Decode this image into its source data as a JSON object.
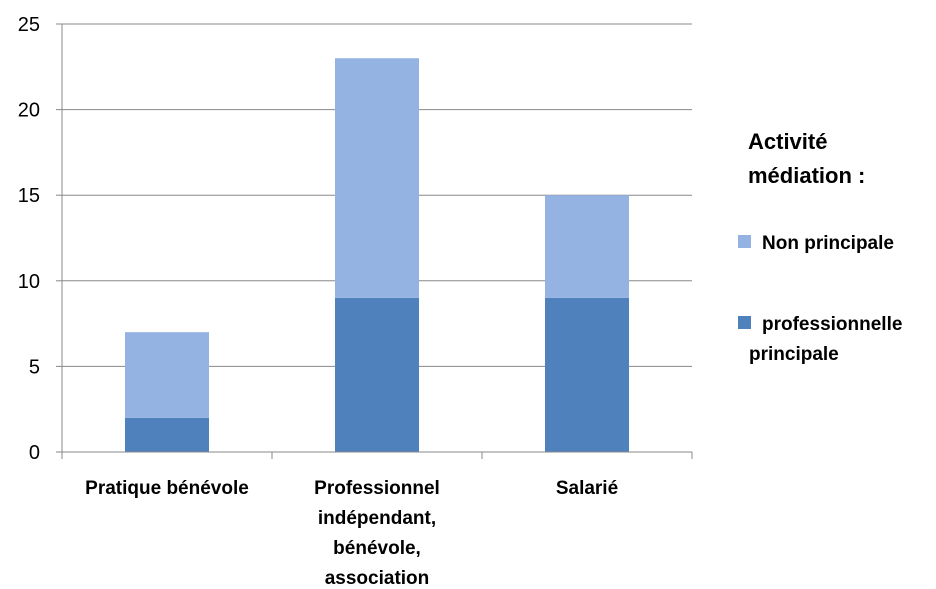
{
  "chart_data": {
    "type": "bar",
    "stacked": true,
    "categories": [
      [
        "Pratique bénévole"
      ],
      [
        "Professionnel",
        "indépendant,",
        "bénévole,",
        "association"
      ],
      [
        "Salarié"
      ]
    ],
    "series": [
      {
        "name": [
          "professionnelle",
          "principale"
        ],
        "values": [
          2,
          9,
          9
        ],
        "color": "#4f81bd"
      },
      {
        "name": [
          "Non principale"
        ],
        "values": [
          5,
          14,
          6
        ],
        "color": "#95b3e2"
      }
    ],
    "ylim": [
      0,
      25
    ],
    "yticks": [
      "0",
      "5",
      "10",
      "15",
      "20",
      "25"
    ],
    "grid": true,
    "legend": {
      "position": "right",
      "title": [
        "Activité",
        "médiation :"
      ]
    }
  }
}
